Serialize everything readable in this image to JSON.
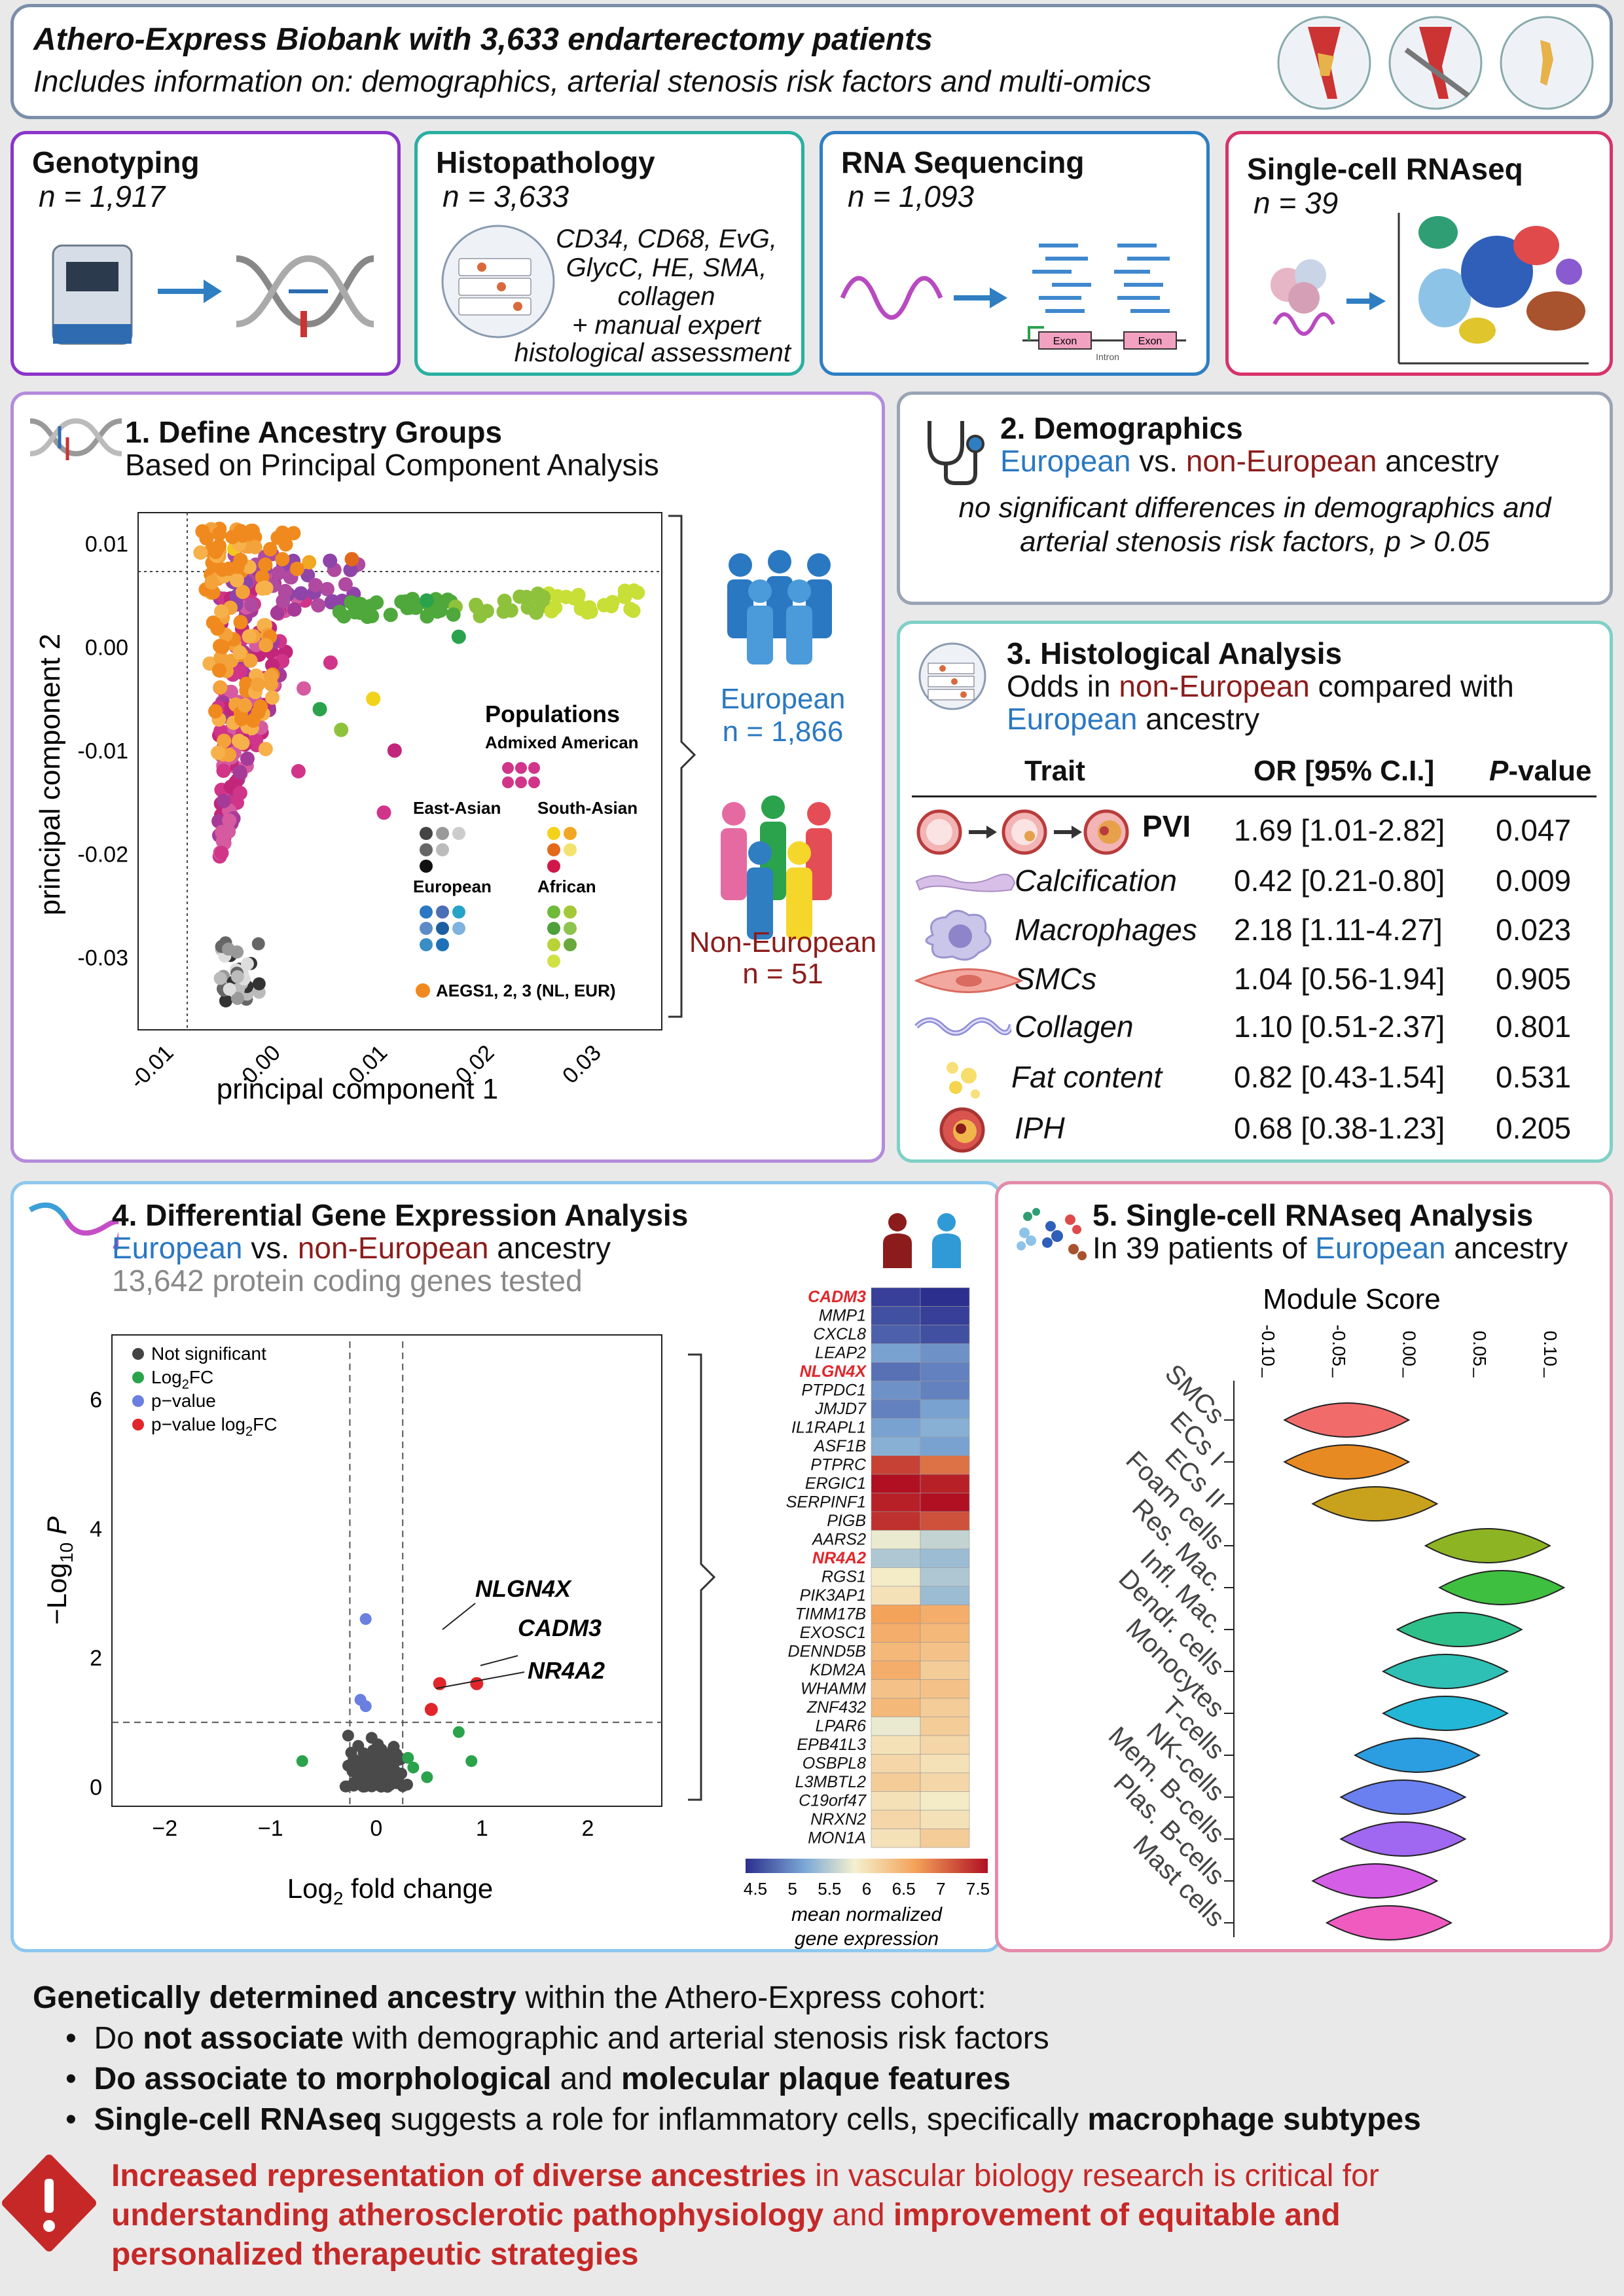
{
  "header": {
    "title": "Athero-Express Biobank with 3,633 endarterectomy patients",
    "subtitle": "Includes information on: demographics, arterial stenosis risk factors and multi-omics"
  },
  "cards": [
    {
      "title": "Genotyping",
      "n": "n = 1,917"
    },
    {
      "title": "Histopathology",
      "n": "n = 3,633",
      "stains": [
        "CD34, CD68, EvG,",
        "GlycC, HE, SMA,",
        "collagen",
        "+ manual expert",
        "histological assessment"
      ]
    },
    {
      "title": "RNA Sequencing",
      "n": "n = 1,093",
      "exon": "Exon",
      "intron": "Intron"
    },
    {
      "title": "Single-cell RNAseq",
      "n": "n = 39"
    }
  ],
  "panel1": {
    "title": "1. Define Ancestry Groups",
    "subtitle": "Based on Principal Component Analysis",
    "xlabel": "principal component 1",
    "ylabel": "principal component 2",
    "xticks": [
      "-0.01",
      "0.00",
      "0.01",
      "0.02",
      "0.03"
    ],
    "yticks": [
      "0.01",
      "0.00",
      "-0.01",
      "-0.02",
      "-0.03"
    ],
    "legend": {
      "title": "Populations",
      "admixed": "Admixed American",
      "eastasian": "East-Asian",
      "southasian": "South-Asian",
      "european": "European",
      "african": "African",
      "aegs": "AEGS1, 2, 3 (NL, EUR)"
    },
    "group_eu": "European",
    "n_eu": "n = 1,866",
    "group_noneu": "Non-European",
    "n_noneu": "n = 51"
  },
  "panel2": {
    "title": "2. Demographics",
    "sub_eu": "European",
    "sub_vs": " vs. ",
    "sub_noneu": "non-European",
    "sub_end": " ancestry",
    "line1": "no significant differences in demographics and",
    "line2": "arterial stenosis risk factors, p > 0.05"
  },
  "panel3": {
    "title": "3. Histological Analysis",
    "sub1a": "Odds in ",
    "sub1b": "non-European",
    "sub1c": " compared with",
    "sub2a": "European",
    "sub2b": " ancestry",
    "col_trait": "Trait",
    "col_or": "OR [95% C.I.]",
    "col_p": "P",
    "col_pv": "-value",
    "rows": [
      {
        "trait": "PVI",
        "or": "1.69 [1.01-2.82]",
        "p": "0.047"
      },
      {
        "trait": "Calcification",
        "or": "0.42 [0.21-0.80]",
        "p": "0.009"
      },
      {
        "trait": "Macrophages",
        "or": "2.18 [1.11-4.27]",
        "p": "0.023"
      },
      {
        "trait": "SMCs",
        "or": "1.04 [0.56-1.94]",
        "p": "0.905"
      },
      {
        "trait": "Collagen",
        "or": "1.10 [0.51-2.37]",
        "p": "0.801"
      },
      {
        "trait": "Fat content",
        "or": "0.82 [0.43-1.54]",
        "p": "0.531"
      },
      {
        "trait": "IPH",
        "or": "0.68 [0.38-1.23]",
        "p": "0.205"
      }
    ]
  },
  "panel4": {
    "title": "4. Differential Gene Expression Analysis",
    "sub_eu": "European",
    "sub_vs": " vs. ",
    "sub_noneu": "non-European",
    "sub_end": " ancestry",
    "tested": "13,642 protein coding genes tested",
    "volcano": {
      "ylabel_pre": "−Log",
      "ylabel_sub": "10",
      "ylabel_post": " P",
      "xlabel_pre": "Log",
      "xlabel_sub": "2",
      "xlabel_post": " fold change",
      "xticks": [
        "−2",
        "−1",
        "0",
        "1",
        "2"
      ],
      "yticks": [
        "0",
        "2",
        "4",
        "6"
      ],
      "legend": [
        "Not significant",
        "Log",
        "p−value",
        "p−value log"
      ],
      "legend_sub": "2",
      "legend_fc": "FC",
      "legend_fc2": "FC",
      "labels": [
        "NLGN4X",
        "CADM3",
        "NR4A2"
      ]
    },
    "heatmap_genes": [
      "CADM3",
      "MMP1",
      "CXCL8",
      "LEAP2",
      "NLGN4X",
      "PTPDC1",
      "JMJD7",
      "IL1RAPL1",
      "ASF1B",
      "PTPRC",
      "ERGIC1",
      "SERPINF1",
      "PIGB",
      "AARS2",
      "NR4A2",
      "RGS1",
      "PIK3AP1",
      "TIMM17B",
      "EXOSC1",
      "DENND5B",
      "KDM2A",
      "WHAMM",
      "ZNF432",
      "LPAR6",
      "EPB41L3",
      "OSBPL8",
      "L3MBTL2",
      "C19orf47",
      "NRXN2",
      "MON1A"
    ],
    "scale": [
      "4.5",
      "5",
      "5.5",
      "6",
      "6.5",
      "7",
      "7.5"
    ],
    "scale_l1": "mean normalized",
    "scale_l2": "gene expression"
  },
  "panel5": {
    "title": "5. Single-cell RNAseq Analysis",
    "sub_pre": "In 39 patients of ",
    "sub_eu": "European",
    "sub_post": " ancestry",
    "axis_title": "Module Score",
    "ticks": [
      "-0.10",
      "-0.05",
      "0.00",
      "0.05",
      "0.10"
    ],
    "cells": [
      "SMCs",
      "ECs I",
      "ECs II",
      "Foam cells",
      "Res. Mac.",
      "Infl. Mac.",
      "Dendr. cells",
      "Monocytes",
      "T-cells",
      "NK-cells",
      "Mem. B-cells",
      "Plas. B-cells",
      "Mast cells"
    ]
  },
  "conclusion": {
    "line0a": "Genetically determined ancestry",
    "line0b": " within the Athero-Express cohort:",
    "b1a": "Do ",
    "b1b": "not associate",
    "b1c": " with demographic and arterial stenosis risk factors",
    "b2a": "Do associate to morphological",
    "b2b": " and ",
    "b2c": "molecular plaque features",
    "b3a": "Single-cell RNAseq",
    "b3b": " suggests a role for inflammatory cells, specifically ",
    "b3c": "macrophage subtypes",
    "w1a": "Increased representation of diverse ancestries",
    "w1b": " in vascular biology research is critical for",
    "w2a": "understanding atherosclerotic pathophysiology",
    "w2b": " and ",
    "w2c": "improvement of equitable and",
    "w3a": "personalized therapeutic strategies"
  },
  "chart_data": [
    {
      "type": "scatter",
      "title": "1. Define Ancestry Groups",
      "xlabel": "principal component 1",
      "ylabel": "principal component 2",
      "xlim": [
        -0.013,
        0.036
      ],
      "ylim": [
        -0.037,
        0.013
      ],
      "series": [
        "Admixed American",
        "East-Asian",
        "South-Asian",
        "European",
        "African",
        "AEGS1, 2, 3 (NL, EUR)"
      ]
    },
    {
      "type": "scatter",
      "title": "Volcano plot",
      "xlabel": "Log2 fold change",
      "ylabel": "-Log10 P",
      "xlim": [
        -2.5,
        2.7
      ],
      "ylim": [
        -0.3,
        7
      ],
      "points": [
        {
          "label": "NLGN4X",
          "x": 0.6,
          "y": 1.6
        },
        {
          "label": "CADM3",
          "x": 0.95,
          "y": 1.6
        },
        {
          "label": "NR4A2",
          "x": 0.52,
          "y": 1.2
        }
      ]
    },
    {
      "type": "heatmap",
      "title": "mean normalized gene expression",
      "scale_min": 4.5,
      "scale_max": 7.5,
      "columns": [
        "non-European",
        "European"
      ],
      "values": [
        [
          4.6,
          4.5
        ],
        [
          4.7,
          4.6
        ],
        [
          4.8,
          4.7
        ],
        [
          5.2,
          5.1
        ],
        [
          4.9,
          5.0
        ],
        [
          5.1,
          5.0
        ],
        [
          5.0,
          5.2
        ],
        [
          5.2,
          5.3
        ],
        [
          5.3,
          5.2
        ],
        [
          7.2,
          6.9
        ],
        [
          7.5,
          7.4
        ],
        [
          7.4,
          7.6
        ],
        [
          7.3,
          7.1
        ],
        [
          5.8,
          5.6
        ],
        [
          5.5,
          5.4
        ],
        [
          5.9,
          5.5
        ],
        [
          6.0,
          5.4
        ],
        [
          6.6,
          6.5
        ],
        [
          6.5,
          6.4
        ],
        [
          6.4,
          6.3
        ],
        [
          6.5,
          6.2
        ],
        [
          6.3,
          6.3
        ],
        [
          6.4,
          6.2
        ],
        [
          5.8,
          6.2
        ],
        [
          6.0,
          6.1
        ],
        [
          6.1,
          6.0
        ],
        [
          6.2,
          6.1
        ],
        [
          6.0,
          5.9
        ],
        [
          6.1,
          6.0
        ],
        [
          6.0,
          6.2
        ]
      ]
    },
    {
      "type": "violin",
      "title": "Module Score",
      "categories": [
        "SMCs",
        "ECs I",
        "ECs II",
        "Foam cells",
        "Res. Mac.",
        "Infl. Mac.",
        "Dendr. cells",
        "Monocytes",
        "T-cells",
        "NK-cells",
        "Mem. B-cells",
        "Plas. B-cells",
        "Mast cells"
      ],
      "medians": [
        -0.04,
        -0.04,
        -0.02,
        0.06,
        0.07,
        0.04,
        0.03,
        0.03,
        0.01,
        0.0,
        0.0,
        -0.02,
        -0.01
      ],
      "xlim": [
        -0.12,
        0.14
      ]
    }
  ]
}
